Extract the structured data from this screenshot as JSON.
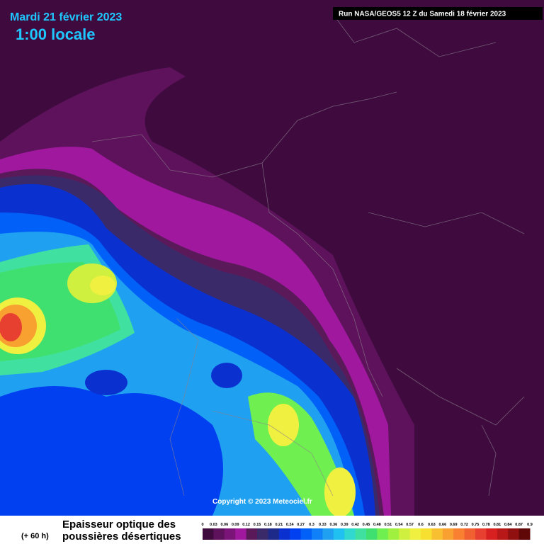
{
  "header": {
    "date": "Mardi 21 février 2023",
    "time": "1:00 locale",
    "run": "Run NASA/GEOS5 12 Z du Samedi 18 février 2023"
  },
  "copyright": "Copyright © 2023 Meteociel.fr",
  "legend": {
    "title_line1": "Epaisseur optique des",
    "title_line2": "poussières désertiques",
    "lead": "(+ 60 h)",
    "labels": [
      "0",
      "0.03",
      "0.06",
      "0.09",
      "0.12",
      "0.15",
      "0.18",
      "0.21",
      "0.24",
      "0.27",
      "0.3",
      "0.33",
      "0.36",
      "0.39",
      "0.42",
      "0.45",
      "0.48",
      "0.51",
      "0.54",
      "0.57",
      "0.6",
      "0.63",
      "0.66",
      "0.69",
      "0.72",
      "0.75",
      "0.78",
      "0.81",
      "0.84",
      "0.87",
      "0.9"
    ],
    "colors": [
      "#3f0b3f",
      "#5e125c",
      "#7a1478",
      "#a0189e",
      "#5a1a5a",
      "#3b2a6a",
      "#1e2a8a",
      "#0b30d0",
      "#0040f0",
      "#0060f8",
      "#1080f8",
      "#20a0f0",
      "#20c0f0",
      "#30d8d0",
      "#40e0a0",
      "#40e070",
      "#70f050",
      "#a0f040",
      "#d0f040",
      "#f0f040",
      "#f8e030",
      "#f8c030",
      "#f8a030",
      "#f88030",
      "#f06030",
      "#e84030",
      "#d82020",
      "#b81818",
      "#901010",
      "#600808"
    ]
  }
}
